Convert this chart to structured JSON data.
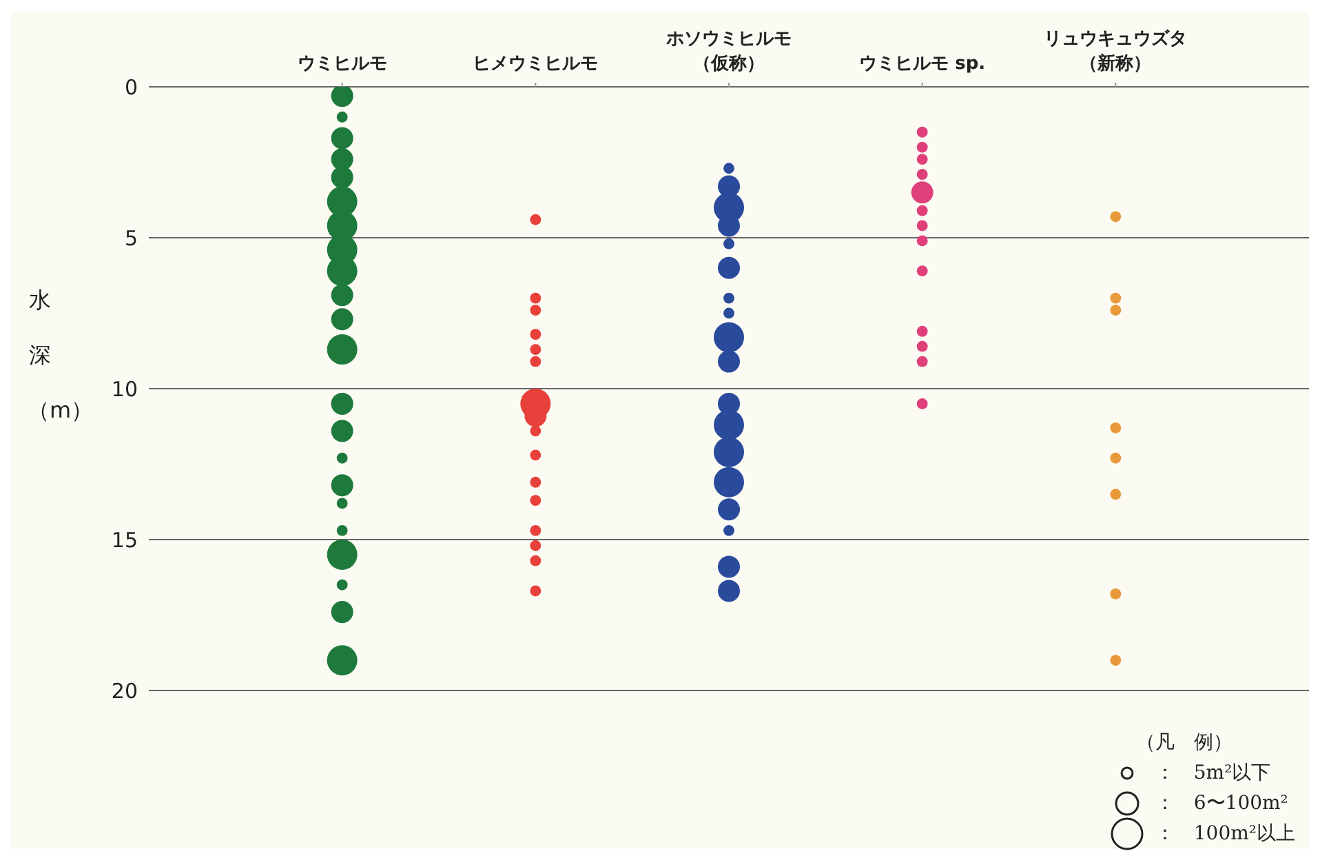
{
  "chart_data": {
    "type": "bubble",
    "categories": [
      "ウミヒルモ",
      "ヒメウミヒルモ",
      "ホソウミヒルモ（仮称）",
      "ウミヒルモ sp.",
      "リュウキュウズタ（新称）"
    ],
    "ylabel": "水深（m）",
    "ylim": [
      20,
      0
    ],
    "yticks": [
      0,
      5,
      10,
      15,
      20
    ],
    "grid": "y",
    "legend_title": "（凡　例）",
    "size_legend": [
      {
        "value": 0.13,
        "label": "：　5m²以下"
      },
      {
        "value": 0.53,
        "label": "：　6〜100m²"
      },
      {
        "value": 1,
        "label": "：　100m²以上"
      }
    ],
    "series": [
      {
        "color": "#1e7a3c",
        "x": [
          "ウミヒルモ",
          "ウミヒルモ",
          "ウミヒルモ",
          "ウミヒルモ",
          "ウミヒルモ",
          "ウミヒルモ",
          "ウミヒルモ",
          "ウミヒルモ",
          "ウミヒルモ",
          "ウミヒルモ",
          "ウミヒルモ",
          "ウミヒルモ",
          "ウミヒルモ",
          "ウミヒルモ",
          "ウミヒルモ",
          "ウミヒルモ",
          "ウミヒルモ",
          "ウミヒルモ",
          "ウミヒルモ",
          "ウミヒルモ",
          "ウミヒルモ",
          "ウミヒルモ"
        ],
        "values": [
          0.3,
          1.0,
          1.7,
          2.4,
          3.0,
          3.8,
          4.6,
          5.4,
          6.1,
          6.9,
          7.7,
          8.7,
          10.5,
          11.4,
          12.3,
          13.2,
          13.8,
          14.7,
          15.5,
          16.5,
          17.4,
          19.0
        ],
        "sizes": [
          0.53,
          0.13,
          0.53,
          0.53,
          0.53,
          1,
          1,
          1,
          1,
          0.53,
          0.53,
          1,
          0.53,
          0.53,
          0.13,
          0.53,
          0.13,
          0.13,
          1,
          0.13,
          0.53,
          1
        ]
      },
      {
        "color": "#e8403a",
        "x": [
          "ヒメウミヒルモ",
          "ヒメウミヒルモ",
          "ヒメウミヒルモ",
          "ヒメウミヒルモ",
          "ヒメウミヒルモ",
          "ヒメウミヒルモ",
          "ヒメウミヒルモ",
          "ヒメウミヒルモ",
          "ヒメウミヒルモ",
          "ヒメウミヒルモ",
          "ヒメウミヒルモ",
          "ヒメウミヒルモ",
          "ヒメウミヒルモ",
          "ヒメウミヒルモ",
          "ヒメウミヒルモ",
          "ヒメウミヒルモ"
        ],
        "values": [
          4.4,
          7.0,
          7.4,
          8.2,
          8.7,
          9.1,
          10.5,
          10.9,
          11.4,
          12.2,
          13.1,
          13.7,
          14.7,
          15.2,
          15.7,
          16.7
        ],
        "sizes": [
          0.13,
          0.13,
          0.13,
          0.13,
          0.13,
          0.13,
          1,
          0.53,
          0.13,
          0.13,
          0.13,
          0.13,
          0.13,
          0.13,
          0.13,
          0.13
        ]
      },
      {
        "color": "#2a4a9c",
        "x": [
          "ホソウミヒルモ（仮称）",
          "ホソウミヒルモ（仮称）",
          "ホソウミヒルモ（仮称）",
          "ホソウミヒルモ（仮称）",
          "ホソウミヒルモ（仮称）",
          "ホソウミヒルモ（仮称）",
          "ホソウミヒルモ（仮称）",
          "ホソウミヒルモ（仮称）",
          "ホソウミヒルモ（仮称）",
          "ホソウミヒルモ（仮称）",
          "ホソウミヒルモ（仮称）",
          "ホソウミヒルモ（仮称）",
          "ホソウミヒルモ（仮称）",
          "ホソウミヒルモ（仮称）",
          "ホソウミヒルモ（仮称）",
          "ホソウミヒルモ（仮称）",
          "ホソウミヒルモ（仮称）",
          "ホソウミヒルモ（仮称）"
        ],
        "values": [
          2.7,
          3.3,
          4.0,
          4.6,
          5.2,
          6.0,
          7.0,
          7.5,
          8.3,
          9.1,
          10.5,
          11.2,
          12.1,
          13.1,
          14.0,
          14.7,
          15.9,
          16.7
        ],
        "sizes": [
          0.13,
          0.53,
          1,
          0.53,
          0.13,
          0.53,
          0.13,
          0.13,
          1,
          0.53,
          0.53,
          1,
          1,
          1,
          0.53,
          0.13,
          0.53,
          0.53
        ]
      },
      {
        "color": "#e0407a",
        "x": [
          "ウミヒルモ sp.",
          "ウミヒルモ sp.",
          "ウミヒルモ sp.",
          "ウミヒルモ sp.",
          "ウミヒルモ sp.",
          "ウミヒルモ sp.",
          "ウミヒルモ sp.",
          "ウミヒルモ sp.",
          "ウミヒルモ sp.",
          "ウミヒルモ sp.",
          "ウミヒルモ sp.",
          "ウミヒルモ sp.",
          "ウミヒルモ sp."
        ],
        "values": [
          1.5,
          2.0,
          2.4,
          2.9,
          3.5,
          4.1,
          4.6,
          5.1,
          6.1,
          8.1,
          8.6,
          9.1,
          10.5
        ],
        "sizes": [
          0.13,
          0.13,
          0.13,
          0.13,
          0.53,
          0.13,
          0.13,
          0.13,
          0.13,
          0.13,
          0.13,
          0.13,
          0.13
        ]
      },
      {
        "color": "#e89a3a",
        "x": [
          "リュウキュウズタ（新称）",
          "リュウキュウズタ（新称）",
          "リュウキュウズタ（新称）",
          "リュウキュウズタ（新称）",
          "リュウキュウズタ（新称）",
          "リュウキュウズタ（新称）",
          "リュウキュウズタ（新称）",
          "リュウキュウズタ（新称）"
        ],
        "values": [
          4.3,
          7.0,
          7.4,
          11.3,
          12.3,
          13.5,
          16.8,
          19.0
        ],
        "sizes": [
          0.13,
          0.13,
          0.13,
          0.13,
          0.13,
          0.13,
          0.13,
          0.13
        ]
      }
    ]
  }
}
